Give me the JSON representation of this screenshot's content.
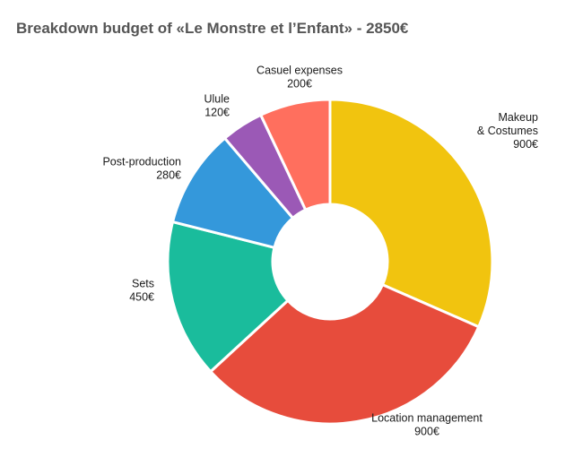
{
  "chart_data": {
    "type": "pie",
    "title": "Breakdown budget of «Le Monstre et l’Enfant» - 2850€",
    "donut": true,
    "slices": [
      {
        "label_lines": [
          "Makeup",
          "& Costumes"
        ],
        "value": 900,
        "value_label": "900€",
        "color": "#F1C40F"
      },
      {
        "label_lines": [
          "Location management"
        ],
        "value": 900,
        "value_label": "900€",
        "color": "#E74C3C"
      },
      {
        "label_lines": [
          "Sets"
        ],
        "value": 450,
        "value_label": "450€",
        "color": "#1ABC9C"
      },
      {
        "label_lines": [
          "Post-production"
        ],
        "value": 280,
        "value_label": "280€",
        "color": "#3498DB"
      },
      {
        "label_lines": [
          "Ulule"
        ],
        "value": 120,
        "value_label": "120€",
        "color": "#9B59B6"
      },
      {
        "label_lines": [
          "Casuel expenses"
        ],
        "value": 200,
        "value_label": "200€",
        "color": "#FF6F5E"
      }
    ]
  }
}
